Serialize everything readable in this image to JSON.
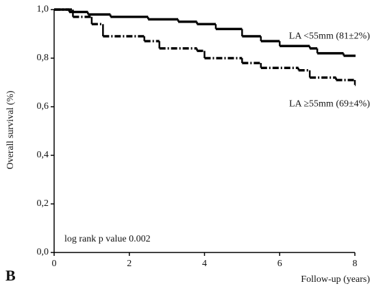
{
  "chart_data": {
    "type": "step",
    "panel_label": "B",
    "xlabel": "Follow-up (years)",
    "ylabel": "Overall survival (%)",
    "annotation": "log rank p value 0.002",
    "xlim": [
      0,
      8
    ],
    "ylim": [
      0,
      1.0
    ],
    "xticks": [
      0,
      2,
      4,
      6,
      8
    ],
    "yticks": [
      {
        "value": 0,
        "label": "0,0"
      },
      {
        "value": 0.2,
        "label": "0,2"
      },
      {
        "value": 0.4,
        "label": "0,4"
      },
      {
        "value": 0.6,
        "label": "0,6"
      },
      {
        "value": 0.8,
        "label": "0,8"
      },
      {
        "value": 1.0,
        "label": "1,0"
      }
    ],
    "series": [
      {
        "name": "LA <55mm (81±2%)",
        "color": "#000000",
        "style": "solid",
        "x": [
          0,
          0.4,
          0.9,
          1.5,
          2.5,
          3.3,
          3.8,
          4.3,
          5.0,
          5.5,
          6.0,
          6.8,
          7.0,
          7.7,
          8.0
        ],
        "values": [
          1.0,
          0.99,
          0.98,
          0.97,
          0.96,
          0.95,
          0.94,
          0.92,
          0.89,
          0.87,
          0.85,
          0.84,
          0.82,
          0.81,
          0.81
        ]
      },
      {
        "name": "LA ≥55mm (69±4%)",
        "color": "#000000",
        "style": "dashdot",
        "x": [
          0,
          0.5,
          1.0,
          1.3,
          2.4,
          2.8,
          3.8,
          4.0,
          5.0,
          5.5,
          6.5,
          6.8,
          7.5,
          8.0
        ],
        "values": [
          1.0,
          0.97,
          0.94,
          0.89,
          0.87,
          0.84,
          0.83,
          0.8,
          0.78,
          0.76,
          0.75,
          0.72,
          0.71,
          0.69
        ]
      }
    ]
  }
}
